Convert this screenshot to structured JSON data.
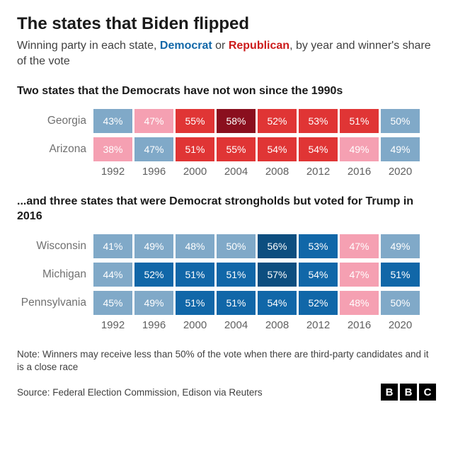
{
  "title": "The states that Biden flipped",
  "subtitle_pre": "Winning party in each state, ",
  "subtitle_dem": "Democrat",
  "subtitle_mid": " or ",
  "subtitle_rep": "Republican",
  "subtitle_post": ", by year and winner's share of the vote",
  "years": [
    "1992",
    "1996",
    "2000",
    "2004",
    "2008",
    "2012",
    "2016",
    "2020"
  ],
  "colors": {
    "dem_light": "#80a9c8",
    "dem_mid": "#3b7fb5",
    "dem_strong": "#1167a8",
    "dem_dark": "#0d4e7f",
    "rep_light": "#f5a0b2",
    "rep_mid": "#e03535",
    "rep_strong": "#cc1b1b",
    "rep_dark": "#8a0f1e"
  },
  "group1": {
    "heading": "Two states that the Democrats have not won since the 1990s",
    "states": [
      {
        "name": "Georgia",
        "cells": [
          {
            "v": "43%",
            "c": "dem_light"
          },
          {
            "v": "47%",
            "c": "rep_light"
          },
          {
            "v": "55%",
            "c": "rep_mid"
          },
          {
            "v": "58%",
            "c": "rep_dark"
          },
          {
            "v": "52%",
            "c": "rep_mid"
          },
          {
            "v": "53%",
            "c": "rep_mid"
          },
          {
            "v": "51%",
            "c": "rep_mid"
          },
          {
            "v": "50%",
            "c": "dem_light"
          }
        ]
      },
      {
        "name": "Arizona",
        "cells": [
          {
            "v": "38%",
            "c": "rep_light"
          },
          {
            "v": "47%",
            "c": "dem_light"
          },
          {
            "v": "51%",
            "c": "rep_mid"
          },
          {
            "v": "55%",
            "c": "rep_mid"
          },
          {
            "v": "54%",
            "c": "rep_mid"
          },
          {
            "v": "54%",
            "c": "rep_mid"
          },
          {
            "v": "49%",
            "c": "rep_light"
          },
          {
            "v": "49%",
            "c": "dem_light"
          }
        ]
      }
    ]
  },
  "group2": {
    "heading": "...and three states that were Democrat strongholds but voted for Trump in 2016",
    "states": [
      {
        "name": "Wisconsin",
        "cells": [
          {
            "v": "41%",
            "c": "dem_light"
          },
          {
            "v": "49%",
            "c": "dem_light"
          },
          {
            "v": "48%",
            "c": "dem_light"
          },
          {
            "v": "50%",
            "c": "dem_light"
          },
          {
            "v": "56%",
            "c": "dem_dark"
          },
          {
            "v": "53%",
            "c": "dem_strong"
          },
          {
            "v": "47%",
            "c": "rep_light"
          },
          {
            "v": "49%",
            "c": "dem_light"
          }
        ]
      },
      {
        "name": "Michigan",
        "cells": [
          {
            "v": "44%",
            "c": "dem_light"
          },
          {
            "v": "52%",
            "c": "dem_strong"
          },
          {
            "v": "51%",
            "c": "dem_strong"
          },
          {
            "v": "51%",
            "c": "dem_strong"
          },
          {
            "v": "57%",
            "c": "dem_dark"
          },
          {
            "v": "54%",
            "c": "dem_strong"
          },
          {
            "v": "47%",
            "c": "rep_light"
          },
          {
            "v": "51%",
            "c": "dem_strong"
          }
        ]
      },
      {
        "name": "Pennsylvania",
        "cells": [
          {
            "v": "45%",
            "c": "dem_light"
          },
          {
            "v": "49%",
            "c": "dem_light"
          },
          {
            "v": "51%",
            "c": "dem_strong"
          },
          {
            "v": "51%",
            "c": "dem_strong"
          },
          {
            "v": "54%",
            "c": "dem_strong"
          },
          {
            "v": "52%",
            "c": "dem_strong"
          },
          {
            "v": "48%",
            "c": "rep_light"
          },
          {
            "v": "50%",
            "c": "dem_light"
          }
        ]
      }
    ]
  },
  "note": "Note: Winners may receive less than 50% of the vote when there are third-party candidates and it is a close race",
  "source": "Source: Federal Election Commission, Edison via Reuters",
  "logo": [
    "B",
    "B",
    "C"
  ]
}
